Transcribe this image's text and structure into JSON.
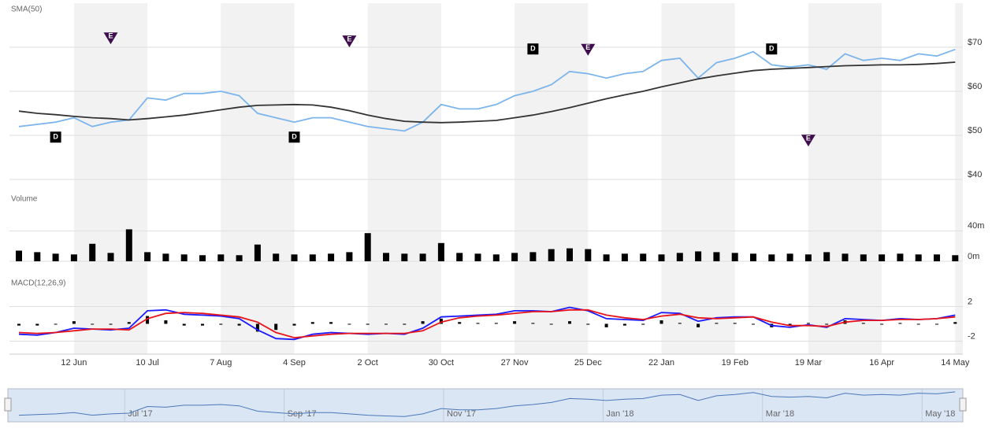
{
  "chart_data": [
    {
      "type": "line",
      "title": "SMA(50)",
      "categories": [
        null,
        null,
        null,
        "12 Jun",
        null,
        null,
        null,
        "10 Jul",
        null,
        null,
        null,
        "7 Aug",
        null,
        null,
        null,
        "4 Sep",
        null,
        null,
        null,
        "2 Oct",
        null,
        null,
        null,
        "30 Oct",
        null,
        null,
        null,
        "27 Nov",
        null,
        null,
        null,
        "25 Dec",
        null,
        null,
        null,
        "22 Jan",
        null,
        null,
        null,
        "19 Feb",
        null,
        null,
        null,
        "19 Mar",
        null,
        null,
        null,
        "16 Apr",
        null,
        null,
        null,
        "14 May"
      ],
      "series": [
        {
          "color": "#7cb5ec",
          "values": [
            52,
            52.5,
            53,
            54,
            52,
            53,
            53.5,
            58.5,
            58,
            59.5,
            59.5,
            60,
            59,
            55,
            54,
            53,
            54,
            54,
            53,
            52,
            51.5,
            51,
            53,
            57,
            56,
            56,
            57,
            59,
            60,
            61.5,
            64.5,
            64,
            63,
            64,
            64.5,
            67,
            67.5,
            63,
            66.5,
            67.5,
            69,
            66,
            65.5,
            66,
            65,
            68.5,
            67,
            67.5,
            67,
            68.5,
            68,
            69.5
          ]
        },
        {
          "color": "#333333",
          "values": [
            55.5,
            55,
            54.7,
            54.3,
            54,
            53.8,
            53.5,
            53.8,
            54.2,
            54.6,
            55.2,
            55.8,
            56.4,
            56.8,
            56.9,
            57,
            56.9,
            56.4,
            55.6,
            54.6,
            53.8,
            53.2,
            53,
            52.9,
            53,
            53.2,
            53.4,
            54,
            54.6,
            55.4,
            56.3,
            57.3,
            58.3,
            59.2,
            60,
            61,
            61.9,
            62.8,
            63.5,
            64.1,
            64.7,
            65,
            65.2,
            65.4,
            65.6,
            65.8,
            65.9,
            66,
            66,
            66.1,
            66.3,
            66.6
          ]
        }
      ],
      "flags": [
        {
          "label": "E",
          "color": "#3f0e4f",
          "shape": "triangle",
          "values": [
            null,
            null,
            null,
            null,
            null,
            72.1,
            null,
            null,
            null,
            null,
            null,
            null,
            null,
            null,
            null,
            null,
            null,
            null,
            71.4,
            null,
            null,
            null,
            null,
            null,
            null,
            null,
            null,
            null,
            null,
            null,
            null,
            69.5,
            null,
            null,
            null,
            null,
            null,
            null,
            null,
            null,
            null,
            null,
            null,
            48.9,
            null,
            null,
            null,
            null,
            null,
            null,
            null,
            null
          ]
        },
        {
          "label": "D",
          "color": "#000000",
          "shape": "square",
          "values": [
            null,
            null,
            49.6,
            null,
            null,
            null,
            null,
            null,
            null,
            null,
            null,
            null,
            null,
            null,
            null,
            49.6,
            null,
            null,
            null,
            null,
            null,
            null,
            null,
            null,
            null,
            null,
            null,
            null,
            69.6,
            null,
            null,
            null,
            null,
            null,
            null,
            null,
            null,
            null,
            null,
            null,
            null,
            69.6,
            null,
            null,
            null,
            null,
            null,
            null,
            null,
            null,
            null,
            null
          ]
        }
      ],
      "ylim": [
        40,
        80
      ],
      "yticks": [
        {
          "value": 40,
          "label": "$40"
        },
        {
          "value": 50,
          "label": "$50"
        },
        {
          "value": 60,
          "label": "$60"
        },
        {
          "value": 70,
          "label": "$70"
        }
      ],
      "grid": true
    },
    {
      "type": "bar",
      "title": "Volume",
      "color": "#000000",
      "values": [
        14,
        12,
        10,
        9,
        23,
        11,
        42,
        12,
        10,
        9,
        8,
        9,
        8,
        22,
        10,
        9,
        9,
        10,
        12,
        37,
        11,
        10,
        10,
        24,
        11,
        10,
        9,
        11,
        12,
        16,
        17,
        16,
        9,
        10,
        10,
        9,
        11,
        13,
        12,
        11,
        10,
        9,
        10,
        9,
        12,
        10,
        9,
        9,
        10,
        9,
        9,
        8
      ],
      "ylim": [
        0,
        90
      ],
      "yticks": [
        {
          "value": 0,
          "label": "0m"
        },
        {
          "value": 40,
          "label": "40m"
        }
      ],
      "grid": true
    },
    {
      "type": "line",
      "title": "MACD(12,26,9)",
      "series": [
        {
          "color": "#1a1aff",
          "values": [
            -1.2,
            -1.3,
            -1,
            -0.5,
            -0.6,
            -0.7,
            -0.5,
            1.5,
            1.6,
            1.1,
            1,
            0.9,
            0.6,
            -0.7,
            -1.7,
            -1.8,
            -1.2,
            -1,
            -1.1,
            -1.2,
            -1.1,
            -1.2,
            -0.5,
            0.8,
            0.9,
            1,
            1.1,
            1.5,
            1.5,
            1.4,
            1.9,
            1.5,
            0.6,
            0.5,
            0.4,
            1.3,
            1.2,
            0.3,
            0.7,
            0.8,
            0.8,
            -0.2,
            -0.4,
            -0.1,
            -0.4,
            0.6,
            0.5,
            0.4,
            0.6,
            0.5,
            0.6,
            1
          ]
        },
        {
          "color": "#e8141a",
          "values": [
            -1,
            -1.1,
            -1,
            -0.8,
            -0.6,
            -0.6,
            -0.7,
            0.6,
            1.2,
            1.3,
            1.2,
            1,
            0.8,
            0.2,
            -1,
            -1.6,
            -1.4,
            -1.2,
            -1.1,
            -1.1,
            -1.1,
            -1.1,
            -0.8,
            0.2,
            0.7,
            0.9,
            1,
            1.2,
            1.4,
            1.4,
            1.6,
            1.6,
            1,
            0.7,
            0.5,
            0.9,
            1.1,
            0.7,
            0.6,
            0.7,
            0.8,
            0.2,
            -0.2,
            -0.2,
            -0.3,
            0.2,
            0.4,
            0.4,
            0.5,
            0.5,
            0.6,
            0.8
          ]
        }
      ],
      "histogram": {
        "color": "#000000",
        "values": [
          -0.2,
          -0.2,
          0,
          0.3,
          0,
          -0.1,
          0.2,
          0.9,
          0.4,
          -0.2,
          -0.2,
          -0.1,
          -0.2,
          -0.9,
          -0.7,
          -0.2,
          0.2,
          0.2,
          0,
          -0.1,
          0,
          -0.1,
          0.3,
          0.6,
          0.2,
          0.1,
          0.1,
          0.3,
          0.1,
          0,
          0.3,
          -0.1,
          -0.4,
          -0.2,
          -0.1,
          0.4,
          0.1,
          -0.4,
          0.1,
          0.1,
          0,
          -0.4,
          -0.2,
          0.1,
          -0.1,
          0.4,
          0.1,
          0,
          0.1,
          0,
          0,
          0.2
        ]
      },
      "ylim": [
        -3.5,
        5.4
      ],
      "yticks": [
        -2,
        2
      ],
      "grid": true
    },
    {
      "type": "navigator",
      "categories": [
        null,
        "Jul '17",
        null,
        "Sep '17",
        null,
        "Nov '17",
        null,
        "Jan '18",
        null,
        "Mar '18",
        null,
        "May '18"
      ]
    }
  ]
}
